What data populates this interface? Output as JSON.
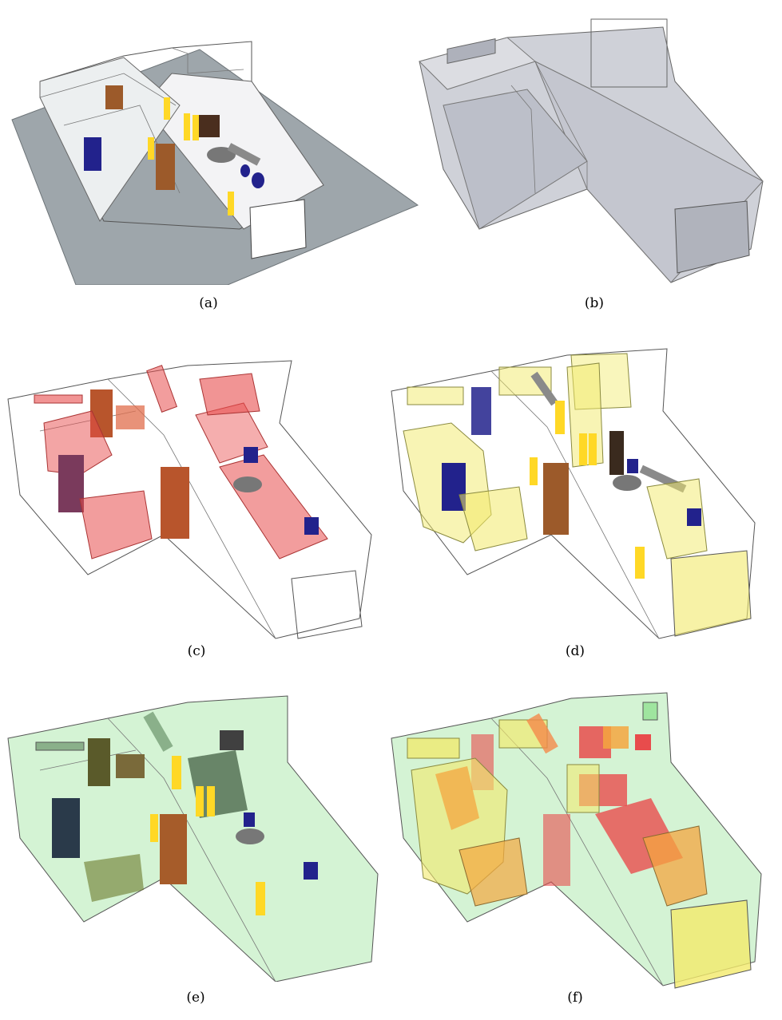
{
  "captions": {
    "a": "(a)",
    "b": "(b)",
    "c": "(c)",
    "d": "(d)",
    "e": "(e)",
    "f": "(f)"
  },
  "colors": {
    "ground": "#9ea6ab",
    "shell_gray": "#b9bcc6",
    "red_box": "#e84c4c",
    "yellow_box": "#f2ea6a",
    "green_box": "#9fe59f",
    "orange_box": "#f4a640",
    "wood": "#9c5a2a",
    "chair_blue": "#22228c",
    "figure_yellow": "#ffd826"
  }
}
